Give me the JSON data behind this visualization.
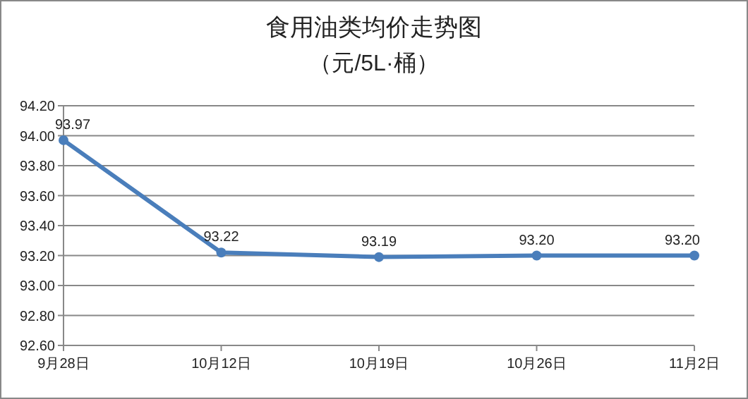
{
  "chart_data": {
    "type": "line",
    "title": "食用油类均价走势图",
    "subtitle": "（元/5L·桶）",
    "categories": [
      "9月28日",
      "10月12日",
      "10月19日",
      "10月26日",
      "11月2日"
    ],
    "series": [
      {
        "color": "#4a7ebb",
        "values": [
          93.97,
          93.22,
          93.19,
          93.2,
          93.2
        ],
        "value_labels": [
          "93.97",
          "93.22",
          "93.19",
          "93.20",
          "93.20"
        ]
      }
    ],
    "ylim": [
      92.6,
      94.2
    ],
    "yticks": [
      {
        "value": 92.6,
        "label": "92.60"
      },
      {
        "value": 92.8,
        "label": "92.80"
      },
      {
        "value": 93.0,
        "label": "93.00"
      },
      {
        "value": 93.2,
        "label": "93.20"
      },
      {
        "value": 93.4,
        "label": "93.40"
      },
      {
        "value": 93.6,
        "label": "93.60"
      },
      {
        "value": 93.8,
        "label": "93.80"
      },
      {
        "value": 94.0,
        "label": "94.00"
      },
      {
        "value": 94.2,
        "label": "94.20"
      }
    ],
    "grid": "y",
    "marker": "circle",
    "line_style": "solid"
  }
}
